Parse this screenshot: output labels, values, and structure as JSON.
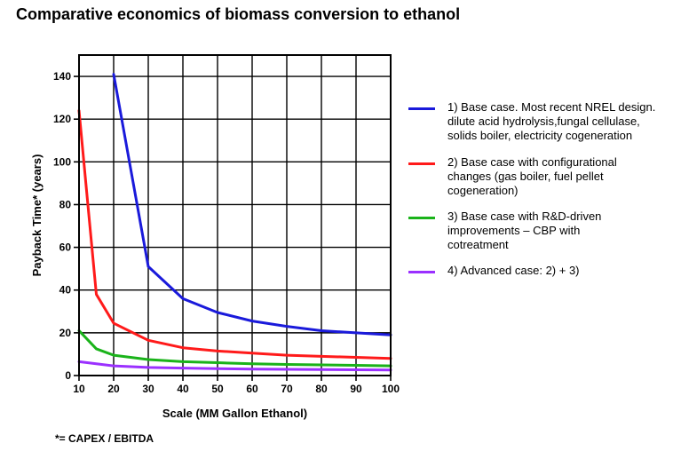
{
  "page": {
    "title": "Comparative economics of biomass conversion to ethanol",
    "footnote": "*= CAPEX / EBITDA"
  },
  "chart_data": {
    "type": "line",
    "title": "Comparative economics of biomass conversion to ethanol",
    "xlabel": "Scale (MM Gallon Ethanol)",
    "ylabel": "Payback Time* (years)",
    "xlim": [
      10,
      100
    ],
    "ylim": [
      0,
      150
    ],
    "xticks": [
      10,
      20,
      30,
      40,
      50,
      60,
      70,
      80,
      90,
      100
    ],
    "yticks": [
      0,
      20,
      40,
      60,
      80,
      100,
      120,
      140
    ],
    "grid": true,
    "legend_position": "right",
    "series": [
      {
        "name": "1) Base case.  Most recent NREL design.\ndilute acid hydrolysis,fungal cellulase,\nsolids boiler, electricity cogeneration",
        "color": "#1a1adb",
        "x": [
          20,
          30,
          40,
          50,
          60,
          70,
          80,
          90,
          100
        ],
        "y": [
          141,
          51,
          36,
          29.5,
          25.5,
          23,
          21,
          20,
          19
        ]
      },
      {
        "name": "2) Base case with configurational\nchanges (gas boiler, fuel pellet\ncogeneration)",
        "color": "#ff1a1a",
        "x": [
          10,
          15,
          20,
          30,
          40,
          50,
          60,
          70,
          80,
          90,
          100
        ],
        "y": [
          124,
          38,
          24.5,
          16.5,
          13,
          11.5,
          10.5,
          9.5,
          9,
          8.5,
          8
        ]
      },
      {
        "name": "3) Base case with R&D-driven\nimprovements – CBP with\ncotreatment",
        "color": "#1ab31a",
        "x": [
          10,
          15,
          20,
          30,
          40,
          50,
          60,
          70,
          80,
          90,
          100
        ],
        "y": [
          21,
          12.5,
          9.5,
          7.5,
          6.5,
          6,
          5.5,
          5.2,
          5,
          4.8,
          4.5
        ]
      },
      {
        "name": "4) Advanced case: 2) + 3)",
        "color": "#9b30ff",
        "x": [
          10,
          20,
          30,
          40,
          50,
          60,
          70,
          80,
          90,
          100
        ],
        "y": [
          6.5,
          4.5,
          3.8,
          3.5,
          3.2,
          3,
          2.9,
          2.8,
          2.7,
          2.6
        ]
      }
    ]
  }
}
